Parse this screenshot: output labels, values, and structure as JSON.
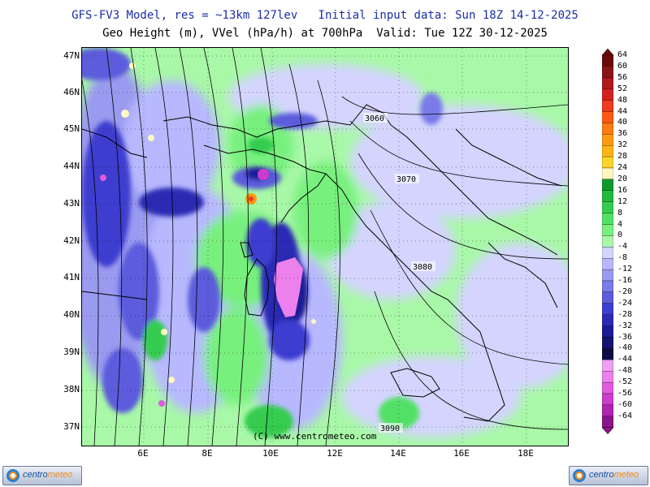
{
  "header": {
    "line1": "GFS-FV3 Model, res = ~13km 127lev   Initial input data: Sun 18Z 14-12-2025",
    "line2": "Geo Height (m), VVel (hPa/h) at 700hPa  Valid: Tue 12Z 30-12-2025"
  },
  "map": {
    "lat_labels": [
      "47N",
      "46N",
      "45N",
      "44N",
      "43N",
      "42N",
      "41N",
      "40N",
      "39N",
      "38N",
      "37N"
    ],
    "lon_labels": [
      "6E",
      "8E",
      "10E",
      "12E",
      "14E",
      "16E",
      "18E"
    ],
    "contour_labels": [
      "3060",
      "3070",
      "3080",
      "3090"
    ],
    "watermark": "(C) www.centrometeo.com"
  },
  "colorbar": {
    "labels": [
      "64",
      "60",
      "56",
      "52",
      "48",
      "44",
      "40",
      "36",
      "32",
      "28",
      "24",
      "20",
      "16",
      "12",
      "8",
      "4",
      "0",
      "-4",
      "-8",
      "-12",
      "-16",
      "-20",
      "-24",
      "-28",
      "-32",
      "-36",
      "-40",
      "-44",
      "-48",
      "-52",
      "-56",
      "-60",
      "-64"
    ],
    "colors": [
      "#6b0a0a",
      "#8a1414",
      "#b01a1a",
      "#d62020",
      "#f23a1a",
      "#ff5a14",
      "#ff7a10",
      "#ff9a10",
      "#ffb414",
      "#ffd428",
      "#fff8c0",
      "#0c9a2c",
      "#22b83e",
      "#36cc50",
      "#52e066",
      "#78f07e",
      "#a8f8a8",
      "#d4d4ff",
      "#b8b8ff",
      "#9a9af0",
      "#7a7ae8",
      "#5c5cdc",
      "#3e3ed0",
      "#2a2ab4",
      "#1c1c96",
      "#141470",
      "#0c0c44",
      "#f0a0f0",
      "#ec80ec",
      "#e05ae0",
      "#cc3ccc",
      "#b024b0",
      "#8a148a"
    ]
  },
  "logos": {
    "left_brand_a": "centro",
    "left_brand_b": "meteo",
    "right_brand_a": "centro",
    "right_brand_b": "meteo"
  }
}
